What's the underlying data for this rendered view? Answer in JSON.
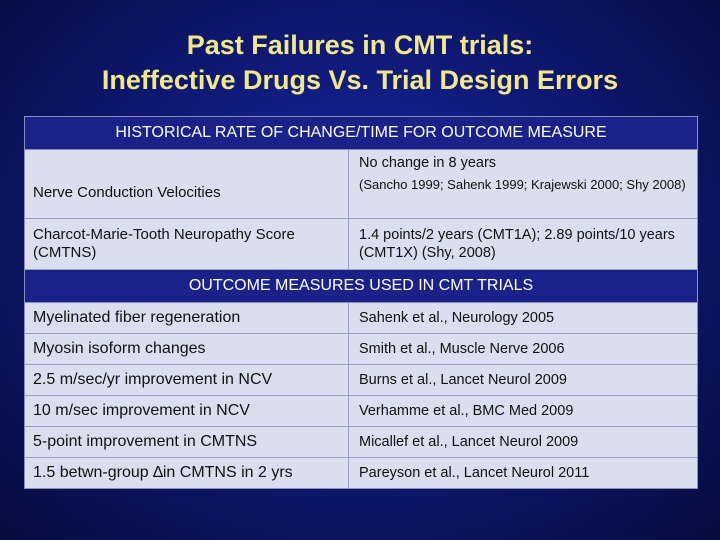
{
  "title": {
    "line1": "Past Failures in CMT trials:",
    "line2": "Ineffective Drugs Vs. Trial Design Errors"
  },
  "historical": {
    "header": "HISTORICAL RATE OF CHANGE/TIME FOR OUTCOME MEASURE",
    "rows": [
      {
        "measure": "Nerve Conduction Velocities",
        "finding": "No change in 8 years",
        "refs": "(Sancho 1999; Sahenk 1999; Krajewski 2000; Shy 2008)"
      },
      {
        "measure": "Charcot-Marie-Tooth Neuropathy Score (CMTNS)",
        "finding": "1.4 points/2 years (CMT1A); 2.89 points/10 years (CMT1X) (Shy, 2008)"
      }
    ]
  },
  "outcomes": {
    "header": "OUTCOME MEASURES USED IN CMT TRIALS",
    "rows": [
      {
        "measure": "Myelinated fiber regeneration",
        "source": "Sahenk et al., Neurology 2005"
      },
      {
        "measure": "Myosin isoform changes",
        "source": "Smith et al., Muscle Nerve 2006"
      },
      {
        "measure": "2.5 m/sec/yr improvement in NCV",
        "source": "Burns et al., Lancet Neurol 2009"
      },
      {
        "measure": "10 m/sec improvement in NCV",
        "source": "Verhamme et al., BMC Med 2009"
      },
      {
        "measure": "5-point improvement in CMTNS",
        "source": "Micallef et al., Lancet Neurol 2009"
      },
      {
        "measure": "1.5 betwn-group ∆in CMTNS in 2 yrs",
        "source": "Pareyson et al., Lancet Neurol 2011"
      }
    ]
  }
}
